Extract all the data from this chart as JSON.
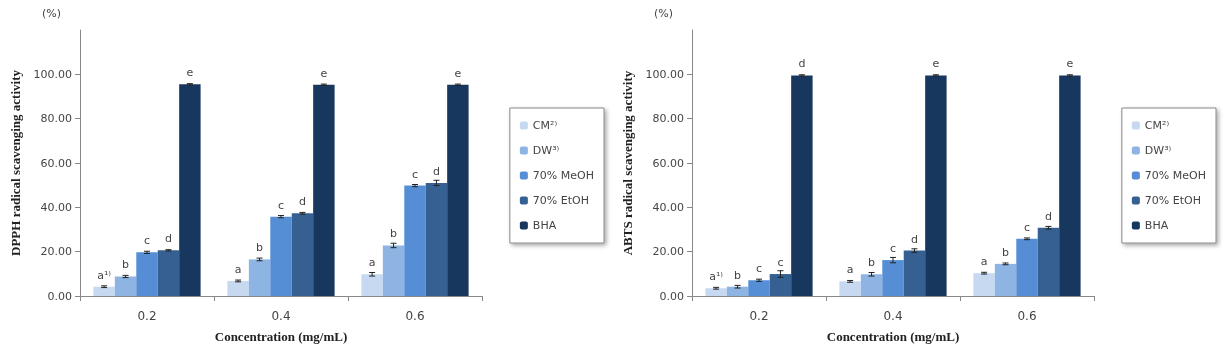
{
  "chart_data": [
    {
      "type": "bar",
      "ylabel": "DPPH radical scavenging activity",
      "xlabel": "Concentration (mg/mL)",
      "annotations": [
        "(%)"
      ],
      "categories": [
        "0.2",
        "0.4",
        "0.6"
      ],
      "series": [
        {
          "name": "CM²⁾",
          "color": "#c6d9f1",
          "values": [
            4.2,
            6.8,
            9.8
          ],
          "errors": [
            0.4,
            0.4,
            0.8
          ],
          "value_labels": [
            "a¹⁾",
            "a",
            "a"
          ]
        },
        {
          "name": "DW³⁾",
          "color": "#8db4e2",
          "values": [
            8.8,
            16.5,
            22.8
          ],
          "errors": [
            0.5,
            0.6,
            1.0
          ],
          "value_labels": [
            "b",
            "b",
            "b"
          ]
        },
        {
          "name": "70% MeOH",
          "color": "#558ed5",
          "values": [
            19.7,
            35.8,
            49.8
          ],
          "errors": [
            0.5,
            0.5,
            0.5
          ],
          "value_labels": [
            "c",
            "c",
            "c"
          ]
        },
        {
          "name": "70% EtOH",
          "color": "#366092",
          "values": [
            20.6,
            37.3,
            51.0
          ],
          "errors": [
            0.3,
            0.4,
            1.2
          ],
          "value_labels": [
            "d",
            "d",
            "d"
          ]
        },
        {
          "name": "BHA",
          "color": "#17375e",
          "values": [
            95.5,
            95.3,
            95.3
          ],
          "errors": [
            0.3,
            0.3,
            0.3
          ],
          "value_labels": [
            "e",
            "e",
            "e"
          ]
        }
      ],
      "ylim": [
        0,
        120
      ],
      "yticks": [
        {
          "value": 0,
          "label": "0.00"
        },
        {
          "value": 20,
          "label": "20.00"
        },
        {
          "value": 40,
          "label": "40.00"
        },
        {
          "value": 60,
          "label": "60.00"
        },
        {
          "value": 80,
          "label": "80.00"
        },
        {
          "value": 100,
          "label": "100.00"
        }
      ],
      "grid": false,
      "legend": "right"
    },
    {
      "type": "bar",
      "ylabel": "ABTS radical scavenging activity",
      "xlabel": "Concentration (mg/mL)",
      "annotations": [
        "(%)"
      ],
      "categories": [
        "0.2",
        "0.4",
        "0.6"
      ],
      "series": [
        {
          "name": "CM²⁾",
          "color": "#c6d9f1",
          "values": [
            3.5,
            6.6,
            10.3
          ],
          "errors": [
            0.4,
            0.4,
            0.4
          ],
          "value_labels": [
            "a¹⁾",
            "a",
            "a"
          ]
        },
        {
          "name": "DW³⁾",
          "color": "#8db4e2",
          "values": [
            4.2,
            9.8,
            14.5
          ],
          "errors": [
            0.6,
            0.8,
            0.4
          ],
          "value_labels": [
            "b",
            "b",
            "b"
          ]
        },
        {
          "name": "70% MeOH",
          "color": "#558ed5",
          "values": [
            7.1,
            16.2,
            25.8
          ],
          "errors": [
            0.5,
            1.2,
            0.4
          ],
          "value_labels": [
            "c",
            "c",
            "c"
          ]
        },
        {
          "name": "70% EtOH",
          "color": "#366092",
          "values": [
            9.9,
            20.5,
            30.8
          ],
          "errors": [
            1.5,
            0.8,
            0.6
          ],
          "value_labels": [
            "c",
            "d",
            "d"
          ]
        },
        {
          "name": "BHA",
          "color": "#17375e",
          "values": [
            99.5,
            99.5,
            99.5
          ],
          "errors": [
            0.3,
            0.3,
            0.3
          ],
          "value_labels": [
            "d",
            "e",
            "e"
          ]
        }
      ],
      "ylim": [
        0,
        120
      ],
      "yticks": [
        {
          "value": 0,
          "label": "0.00"
        },
        {
          "value": 20,
          "label": "20.00"
        },
        {
          "value": 40,
          "label": "40.00"
        },
        {
          "value": 60,
          "label": "60.00"
        },
        {
          "value": 80,
          "label": "80.00"
        },
        {
          "value": 100,
          "label": "100.00"
        }
      ],
      "grid": false,
      "legend": "right"
    }
  ]
}
